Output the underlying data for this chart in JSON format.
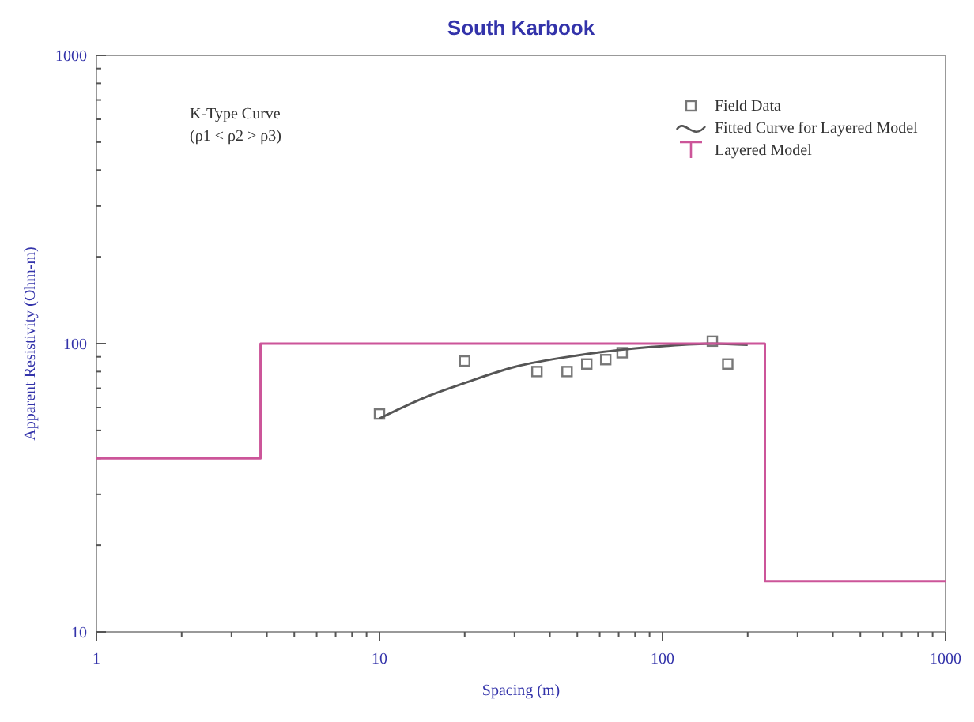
{
  "chart_data": {
    "type": "scatter",
    "title": "South Karbook",
    "xlabel": "Spacing (m)",
    "ylabel": "Apparent Resistivity (Ohm-m)",
    "log": "xy",
    "xlim": [
      1,
      1000
    ],
    "ylim": [
      10,
      1000
    ],
    "xticks": [
      1,
      {
        "value": 2,
        "label": null
      },
      {
        "value": 3,
        "label": null
      },
      {
        "value": 4,
        "label": null
      },
      {
        "value": 5,
        "label": null
      },
      {
        "value": 6,
        "label": null
      },
      {
        "value": 7,
        "label": null
      },
      {
        "value": 8,
        "label": null
      },
      {
        "value": 9,
        "label": null
      },
      10,
      {
        "value": 20,
        "label": null
      },
      {
        "value": 30,
        "label": null
      },
      {
        "value": 40,
        "label": null
      },
      {
        "value": 50,
        "label": null
      },
      {
        "value": 60,
        "label": null
      },
      {
        "value": 70,
        "label": null
      },
      {
        "value": 80,
        "label": null
      },
      {
        "value": 90,
        "label": null
      },
      100,
      {
        "value": 200,
        "label": null
      },
      {
        "value": 300,
        "label": null
      },
      {
        "value": 400,
        "label": null
      },
      {
        "value": 500,
        "label": null
      },
      {
        "value": 600,
        "label": null
      },
      {
        "value": 700,
        "label": null
      },
      {
        "value": 800,
        "label": null
      },
      {
        "value": 900,
        "label": null
      },
      1000
    ],
    "yticks": [
      10,
      {
        "value": 20,
        "label": null
      },
      {
        "value": 30,
        "label": null
      },
      {
        "value": 40,
        "label": null
      },
      {
        "value": 50,
        "label": null
      },
      {
        "value": 60,
        "label": null
      },
      {
        "value": 70,
        "label": null
      },
      {
        "value": 80,
        "label": null
      },
      {
        "value": 90,
        "label": null
      },
      100,
      {
        "value": 200,
        "label": null
      },
      {
        "value": 300,
        "label": null
      },
      {
        "value": 400,
        "label": null
      },
      {
        "value": 500,
        "label": null
      },
      {
        "value": 600,
        "label": null
      },
      {
        "value": 700,
        "label": null
      },
      {
        "value": 800,
        "label": null
      },
      {
        "value": 900,
        "label": null
      },
      1000
    ],
    "grid": false,
    "legend": "top right",
    "annotations": [
      "K-Type Curve",
      "(ρ1 < ρ2 > ρ3)"
    ],
    "series": [
      {
        "name": "Field Data",
        "type": "scatter",
        "marker": "square",
        "color": "#777777",
        "x": [
          10,
          20,
          36,
          46,
          54,
          63,
          72,
          150,
          170
        ],
        "values": [
          57,
          87,
          80,
          80,
          85,
          88,
          93,
          102,
          85
        ]
      },
      {
        "name": "Fitted Curve for Layered Model",
        "type": "line",
        "marker": "none",
        "color": "#555555",
        "x": [
          10,
          15,
          20,
          30,
          50,
          70,
          100,
          150,
          200
        ],
        "values": [
          55,
          66,
          73,
          83,
          91,
          95,
          98,
          100,
          99
        ]
      },
      {
        "name": "Layered Model",
        "type": "step",
        "marker": "none",
        "color": "#cc5599",
        "x": [
          1,
          3.8,
          230,
          1000
        ],
        "values": [
          40,
          100,
          15,
          15
        ]
      }
    ]
  }
}
